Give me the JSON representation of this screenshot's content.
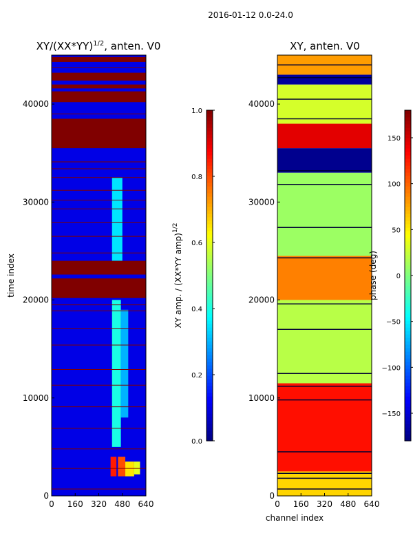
{
  "suptitle": "2016-01-12 0.0-24.0",
  "chart_data": [
    {
      "type": "heatmap",
      "title": "XY/(XX*YY)^1/2, anten. V0",
      "title_base": "XY/(XX*YY)",
      "title_sup": "1/2",
      "title_tail": ", anten. V0",
      "xlabel": "",
      "ylabel": "time index",
      "xlim": [
        0,
        640
      ],
      "ylim": [
        0,
        45000
      ],
      "xticks": [
        0,
        160,
        320,
        480,
        640
      ],
      "yticks": [
        0,
        10000,
        20000,
        30000,
        40000
      ],
      "colormap": "jet",
      "colorbar": {
        "label_base": "XY amp. / (XX*YY amp)",
        "label_sup": "1/2",
        "label": "XY amp. / (XX*YY amp)^1/2",
        "range": [
          0.0,
          1.0
        ],
        "ticks": [
          0.0,
          0.2,
          0.4,
          0.6,
          0.8,
          1.0
        ],
        "tick_labels": [
          "0.0",
          "0.2",
          "0.4",
          "0.6",
          "0.8",
          "1.0"
        ]
      },
      "background_value": 0.1,
      "bands": [
        {
          "t0": 20200,
          "t1": 22200,
          "value": 1.0
        },
        {
          "t0": 22600,
          "t1": 24000,
          "value": 1.0
        },
        {
          "t0": 35500,
          "t1": 38500,
          "value": 1.0
        },
        {
          "t0": 40200,
          "t1": 41300,
          "value": 1.0
        },
        {
          "t0": 41600,
          "t1": 42000,
          "value": 1.0
        },
        {
          "t0": 42400,
          "t1": 43200,
          "value": 1.0
        },
        {
          "t0": 44300,
          "t1": 44800,
          "value": 1.0
        }
      ],
      "line_times": [
        700,
        2800,
        4800,
        6900,
        9100,
        11300,
        12900,
        15400,
        17100,
        18900,
        19500,
        24800,
        26500,
        27900,
        29300,
        30200,
        31200,
        32500,
        33400,
        34100,
        39000,
        43700
      ],
      "hotspots": [
        {
          "c0": 400,
          "c1": 440,
          "t0": 2000,
          "t1": 4000,
          "value": 0.85
        },
        {
          "c0": 450,
          "c1": 500,
          "t0": 2000,
          "t1": 4000,
          "value": 0.8
        },
        {
          "c0": 500,
          "c1": 560,
          "t0": 2000,
          "t1": 3500,
          "value": 0.65
        },
        {
          "c0": 560,
          "c1": 600,
          "t0": 2200,
          "t1": 3500,
          "value": 0.6
        },
        {
          "c0": 410,
          "c1": 470,
          "t0": 5000,
          "t1": 20000,
          "value": 0.4
        },
        {
          "c0": 470,
          "c1": 520,
          "t0": 8000,
          "t1": 19000,
          "value": 0.3
        },
        {
          "c0": 410,
          "c1": 480,
          "t0": 24000,
          "t1": 32500,
          "value": 0.35
        }
      ]
    },
    {
      "type": "heatmap",
      "title": "XY, anten. V0",
      "xlabel": "channel index",
      "ylabel": "",
      "xlim": [
        0,
        640
      ],
      "ylim": [
        0,
        45000
      ],
      "xticks": [
        0,
        160,
        320,
        480,
        640
      ],
      "yticks": [
        0,
        10000,
        20000,
        30000,
        40000
      ],
      "colormap": "jet",
      "colorbar": {
        "label": "phase (deg)",
        "range": [
          -180,
          180
        ],
        "ticks": [
          -150,
          -100,
          -50,
          0,
          50,
          100,
          150
        ],
        "tick_labels": [
          "−150",
          "−100",
          "−50",
          "0",
          "50",
          "100",
          "150"
        ]
      },
      "bands": [
        {
          "t0": 0,
          "t1": 2500,
          "value": 60
        },
        {
          "t0": 2500,
          "t1": 11500,
          "value": 130
        },
        {
          "t0": 11500,
          "t1": 20000,
          "value": 20
        },
        {
          "t0": 20000,
          "t1": 24500,
          "value": 90
        },
        {
          "t0": 24500,
          "t1": 33000,
          "value": 10
        },
        {
          "t0": 33000,
          "t1": 35500,
          "value": -175
        },
        {
          "t0": 35500,
          "t1": 38000,
          "value": 145
        },
        {
          "t0": 38000,
          "t1": 42000,
          "value": 30
        },
        {
          "t0": 42000,
          "t1": 43000,
          "value": -170
        },
        {
          "t0": 43000,
          "t1": 45000,
          "value": 80
        }
      ],
      "dark_lines": [
        700,
        1800,
        2300,
        4500,
        9800,
        11200,
        12500,
        17000,
        19600,
        24300,
        27400,
        31800,
        33200,
        38500,
        40500,
        42700,
        44000
      ]
    }
  ]
}
